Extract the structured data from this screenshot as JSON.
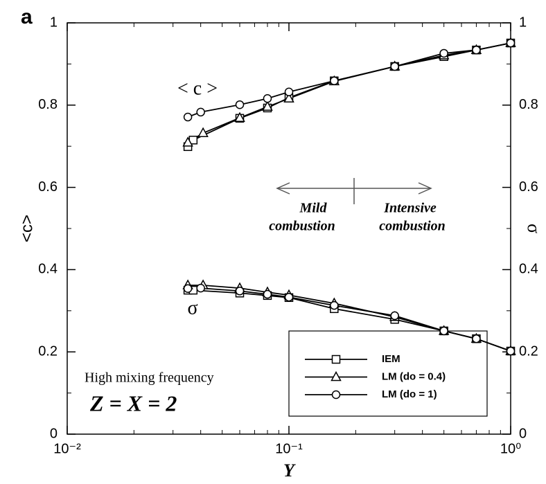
{
  "chart_data": {
    "type": "line",
    "panel_label": "a",
    "xlabel": "Y",
    "ylabel": "<c>",
    "y2label": "σ",
    "xscale": "log",
    "xlim": [
      0.01,
      1
    ],
    "xticks": [
      {
        "value": 0.01,
        "label": "10⁻²"
      },
      {
        "value": 0.1,
        "label": "10⁻¹"
      },
      {
        "value": 1,
        "label": "10⁰"
      }
    ],
    "ylim": [
      0,
      1
    ],
    "yticks": [
      0,
      0.2,
      0.4,
      0.6,
      0.8,
      1
    ],
    "y2lim": [
      0,
      1
    ],
    "y2ticks": [
      0,
      0.2,
      0.4,
      0.6,
      0.8,
      1
    ],
    "legend": "lower right",
    "series": [
      {
        "name": "IEM",
        "marker": "square",
        "color": "#000000",
        "x": [
          0.035,
          0.037,
          0.06,
          0.08,
          0.1,
          0.16,
          0.3,
          0.5,
          0.7,
          1.0
        ],
        "values": [
          0.699,
          0.715,
          0.768,
          0.793,
          0.818,
          0.859,
          0.894,
          0.918,
          0.934,
          0.951
        ],
        "sigma_values": [
          0.35,
          0.35,
          0.343,
          0.337,
          0.332,
          0.305,
          0.279,
          0.251,
          0.232,
          0.202
        ]
      },
      {
        "name": "LM (do = 0.4)",
        "marker": "triangle",
        "color": "#000000",
        "x": [
          0.035,
          0.041,
          0.06,
          0.08,
          0.1,
          0.16,
          0.3,
          0.5,
          0.7,
          1.0
        ],
        "values": [
          0.709,
          0.732,
          0.769,
          0.796,
          0.816,
          0.858,
          0.894,
          0.921,
          0.934,
          0.951
        ],
        "sigma_values": [
          0.362,
          0.362,
          0.355,
          0.345,
          0.338,
          0.318,
          0.285,
          0.251,
          0.232,
          0.202
        ]
      },
      {
        "name": "LM (do = 1)",
        "marker": "circle",
        "color": "#000000",
        "x": [
          0.035,
          0.04,
          0.06,
          0.08,
          0.1,
          0.16,
          0.3,
          0.5,
          0.7,
          1.0
        ],
        "values": [
          0.771,
          0.783,
          0.801,
          0.816,
          0.832,
          0.859,
          0.894,
          0.926,
          0.934,
          0.951
        ],
        "sigma_values": [
          0.354,
          0.355,
          0.348,
          0.34,
          0.333,
          0.313,
          0.288,
          0.251,
          0.232,
          0.202
        ]
      }
    ],
    "annotations": {
      "c_curve_label": "< c >",
      "sigma_curve_label": "σ",
      "mild": [
        "Mild",
        "combustion"
      ],
      "intensive": [
        "Intensive",
        "combustion"
      ],
      "condition": "High mixing frequency",
      "equation": "Z = X = 2"
    }
  }
}
